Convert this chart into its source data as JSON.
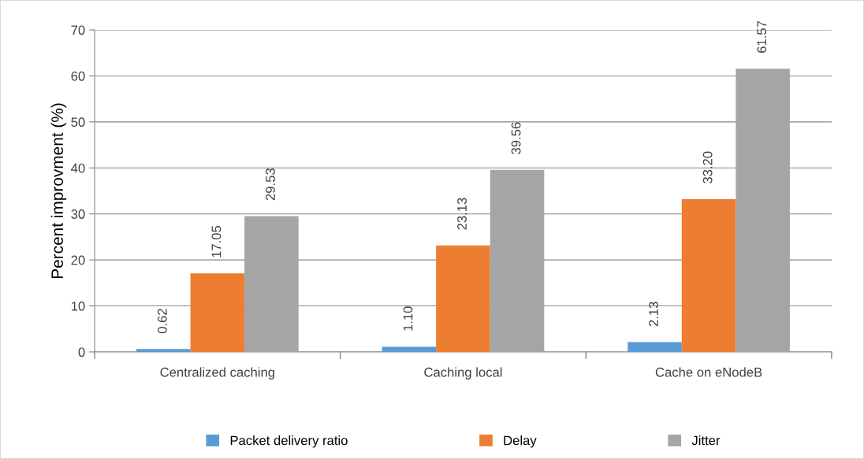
{
  "chart_data": {
    "type": "bar",
    "ylabel": "Percent improvment (%)",
    "categories": [
      "Centralized caching",
      "Caching local",
      "Cache on eNodeB"
    ],
    "series": [
      {
        "name": "Packet delivery ratio",
        "color": "#5b9bd5",
        "values": [
          0.62,
          1.1,
          2.13
        ],
        "value_labels": [
          "0.62",
          "1.10",
          "2.13"
        ]
      },
      {
        "name": "Delay",
        "color": "#ed7d31",
        "values": [
          17.05,
          23.13,
          33.2
        ],
        "value_labels": [
          "17.05",
          "23.13",
          "33.20"
        ]
      },
      {
        "name": "Jitter",
        "color": "#a5a5a5",
        "values": [
          29.53,
          39.56,
          61.57
        ],
        "value_labels": [
          "29.53",
          "39.56",
          "61.57"
        ]
      }
    ],
    "ylim": [
      0,
      70
    ],
    "yticks": [
      0,
      10,
      20,
      30,
      40,
      50,
      60,
      70
    ],
    "grid": "y",
    "legend": "bottom"
  }
}
